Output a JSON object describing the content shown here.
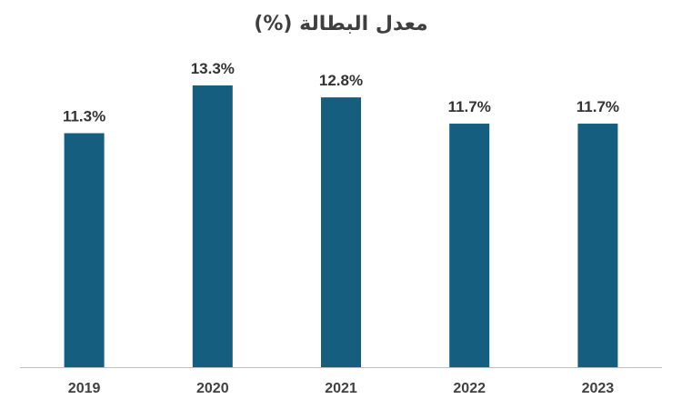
{
  "chart_data": {
    "type": "bar",
    "title": "معدل البطالة (%)",
    "categories": [
      "2019",
      "2020",
      "2021",
      "2022",
      "2023"
    ],
    "values": [
      11.3,
      13.3,
      12.8,
      11.7,
      11.7
    ],
    "data_labels": [
      "11.3%",
      "13.3%",
      "12.8%",
      "11.7%",
      "11.7%"
    ],
    "xlabel": "",
    "ylabel": "",
    "grid": false,
    "legend": "none",
    "colors": {
      "bar": "#155e80",
      "axis": "#bfbfbf"
    }
  }
}
